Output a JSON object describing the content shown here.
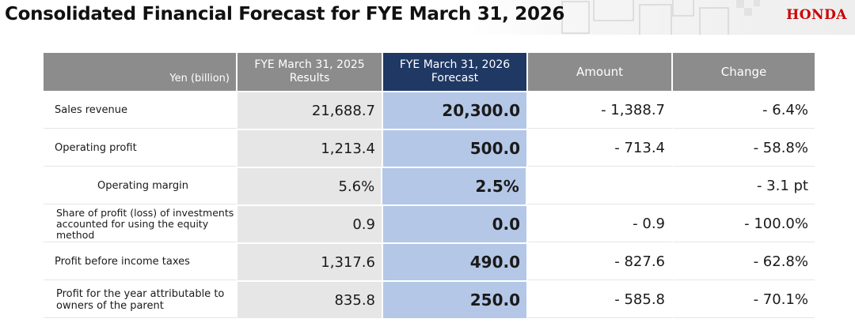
{
  "header": {
    "title": "Consolidated Financial Forecast for FYE March 31, 2026",
    "logo": "HONDA"
  },
  "table": {
    "unit_label": "Yen (billion)",
    "columns": [
      {
        "line1": "FYE March 31, 2025",
        "line2": "Results"
      },
      {
        "line1": "FYE March 31, 2026",
        "line2": "Forecast"
      },
      {
        "line1": "Amount"
      },
      {
        "line1": "Change"
      }
    ],
    "rows": [
      {
        "label": "Sales revenue",
        "results": "21,688.7",
        "forecast": "20,300.0",
        "amount": "- 1,388.7",
        "change": "- 6.4%"
      },
      {
        "label": "Operating profit",
        "results": "1,213.4",
        "forecast": "500.0",
        "amount": "- 713.4",
        "change": "- 58.8%"
      },
      {
        "label": "Operating margin",
        "results": "5.6%",
        "forecast": "2.5%",
        "change": "- 3.1 pt"
      },
      {
        "label": "Share of profit (loss) of investments accounted for using the equity method",
        "results": "0.9",
        "forecast": "0.0",
        "amount": "- 0.9",
        "change": "- 100.0%"
      },
      {
        "label": "Profit before income taxes",
        "results": "1,317.6",
        "forecast": "490.0",
        "amount": "- 827.6",
        "change": "- 62.8%"
      },
      {
        "label": "Profit for the year attributable to owners of the parent",
        "results": "835.8",
        "forecast": "250.0",
        "amount": "- 585.8",
        "change": "- 70.1%"
      }
    ]
  },
  "colors": {
    "header_gray": "#8c8c8c",
    "header_navy": "#1f3864",
    "forecast_fill": "#b4c7e7",
    "results_fill": "#e6e6e6",
    "logo_red": "#cc0000"
  }
}
